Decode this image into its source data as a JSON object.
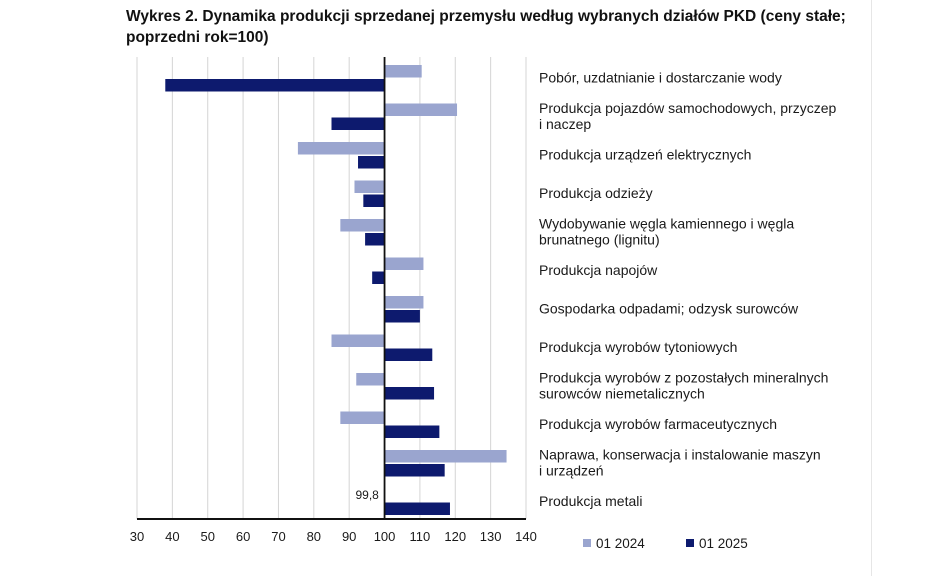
{
  "chart_data": {
    "type": "bar",
    "orientation": "horizontal",
    "title": "Wykres 2. Dynamika produkcji sprzedanej przemysłu według wybranych działów PKD (ceny stałe; poprzedni rok=100)",
    "baseline": 100,
    "xlim": [
      30,
      140
    ],
    "xticks": [
      "30",
      "40",
      "50",
      "60",
      "70",
      "80",
      "90",
      "100",
      "110",
      "120",
      "130",
      "140"
    ],
    "grid": true,
    "legend_position": "bottom-right",
    "categories": [
      [
        "Pobór, uzdatnianie i dostarczanie wody"
      ],
      [
        "Produkcja pojazdów samochodowych, przyczep",
        "i naczep"
      ],
      [
        "Produkcja urządzeń elektrycznych"
      ],
      [
        "Produkcja odzieży"
      ],
      [
        "Wydobywanie węgla kamiennego i węgla",
        "brunatnego (lignitu)"
      ],
      [
        "Produkcja napojów"
      ],
      [
        "Gospodarka odpadami; odzysk surowców"
      ],
      [
        "Produkcja wyrobów tytoniowych"
      ],
      [
        "Produkcja wyrobów z pozostałych mineralnych",
        "surowców niemetalicznych"
      ],
      [
        "Produkcja wyrobów farmaceutycznych"
      ],
      [
        "Naprawa, konserwacja i instalowanie maszyn",
        "i urządzeń"
      ],
      [
        "Produkcja metali"
      ]
    ],
    "series": [
      {
        "name": "01 2024",
        "color": "#9aa5cf",
        "values": [
          110.5,
          120.5,
          75.5,
          91.5,
          87.5,
          111,
          111,
          85,
          92,
          87.5,
          134.5,
          99.8
        ]
      },
      {
        "name": "01 2025",
        "color": "#0d1a6e",
        "values": [
          38,
          85,
          92.5,
          94,
          94.5,
          96.5,
          110,
          113.5,
          114,
          115.5,
          117,
          118.5
        ]
      }
    ],
    "annotations": [
      {
        "category_index": 11,
        "series_index": 0,
        "text": "99,8"
      }
    ]
  }
}
